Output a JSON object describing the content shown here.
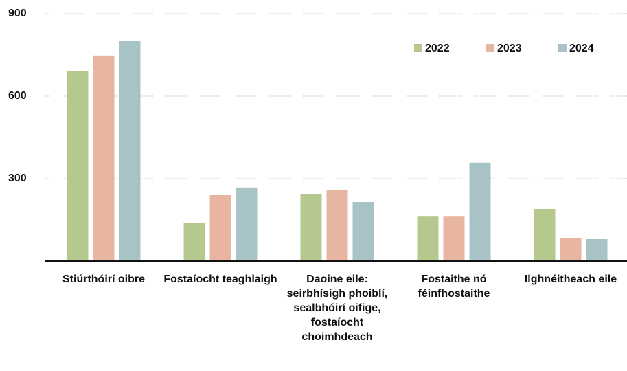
{
  "chart_data": {
    "type": "bar",
    "categories": [
      "Stiúrthóirí oibre",
      "Fostaíocht teaghlaigh",
      "Daoine eile: seirbhísigh phoiblí, sealbhóirí oifige, fostaíocht choimhdeach",
      "Fostaithe nó féinfhostaithe",
      "Ilghnéitheach eile"
    ],
    "series": [
      {
        "name": "2022",
        "color": "#b5c98e",
        "values": [
          690,
          140,
          245,
          162,
          190
        ]
      },
      {
        "name": "2023",
        "color": "#e8b5a0",
        "values": [
          748,
          240,
          260,
          162,
          85
        ]
      },
      {
        "name": "2024",
        "color": "#a8c3c6",
        "values": [
          800,
          268,
          215,
          358,
          80
        ]
      }
    ],
    "ylim": [
      0,
      900
    ],
    "yticks": [
      300,
      600,
      900
    ],
    "grid": true,
    "legend": "top-right"
  }
}
